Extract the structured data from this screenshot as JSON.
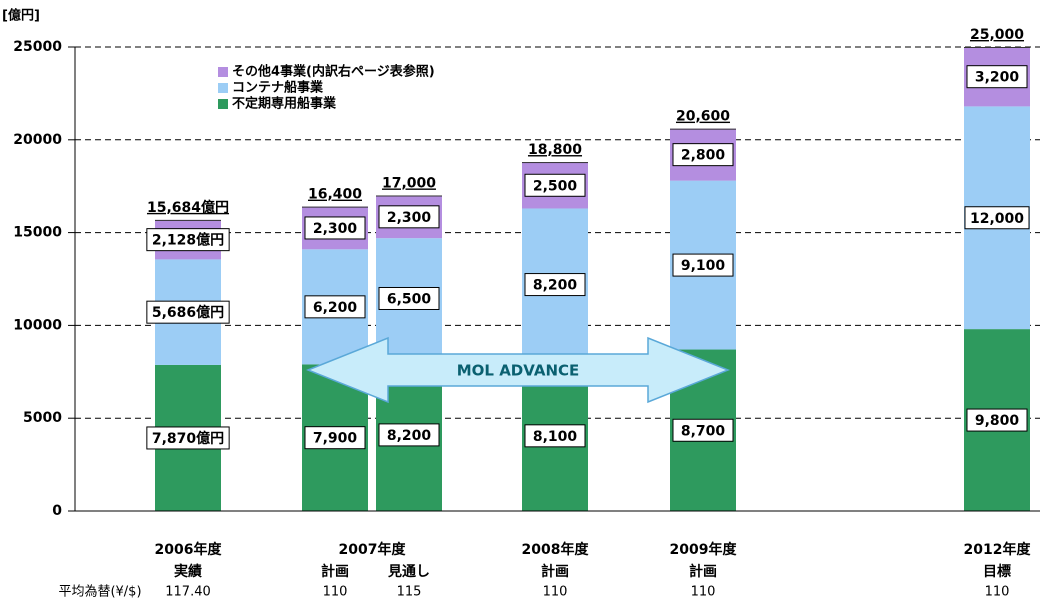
{
  "chart_data": {
    "type": "stacked_bar",
    "y_label": "[億円]",
    "ylim": [
      0,
      25000
    ],
    "yticks": [
      0,
      5000,
      10000,
      15000,
      20000,
      25000
    ],
    "grid": true,
    "legend": "top-left",
    "categories": [
      "実績",
      "計画",
      "見通し",
      "計画",
      "計画",
      "目標"
    ],
    "category_groups": [
      {
        "label": "2006年度",
        "span": 1
      },
      {
        "label": "2007年度",
        "span": 2
      },
      {
        "label": "2008年度",
        "span": 1
      },
      {
        "label": "2009年度",
        "span": 1
      },
      {
        "label": "2012年度",
        "span": 1
      }
    ],
    "series": [
      {
        "name": "不定期専用船事業",
        "color": "#2e9a5e",
        "values": [
          7870,
          7900,
          8200,
          8100,
          8700,
          9800
        ],
        "value_labels": [
          "7,870億円",
          "7,900",
          "8,200",
          "8,100",
          "8,700",
          "9,800"
        ]
      },
      {
        "name": "コンテナ船事業",
        "color": "#9ccdf5",
        "values": [
          5686,
          6200,
          6500,
          8200,
          9100,
          12000
        ],
        "value_labels": [
          "5,686億円",
          "6,200",
          "6,500",
          "8,200",
          "9,100",
          "12,000"
        ]
      },
      {
        "name": "その他4事業(内訳右ページ表参照)",
        "color": "#b48ee0",
        "values": [
          2128,
          2300,
          2300,
          2500,
          2800,
          3200
        ],
        "value_labels": [
          "2,128億円",
          "2,300",
          "2,300",
          "2,500",
          "2,800",
          "3,200"
        ]
      }
    ],
    "totals": [
      15684,
      16400,
      17000,
      18800,
      20600,
      25000
    ],
    "total_labels": [
      "15,684億円",
      "16,400",
      "17,000",
      "18,800",
      "20,600",
      "25,000"
    ],
    "annotation": "MOL ADVANCE",
    "exchange_rate": {
      "label": "平均為替(¥/$)",
      "values": [
        117.4,
        110,
        115,
        110,
        110,
        110
      ],
      "value_labels": [
        "117.40",
        "110",
        "115",
        "110",
        "110",
        "110"
      ]
    }
  }
}
